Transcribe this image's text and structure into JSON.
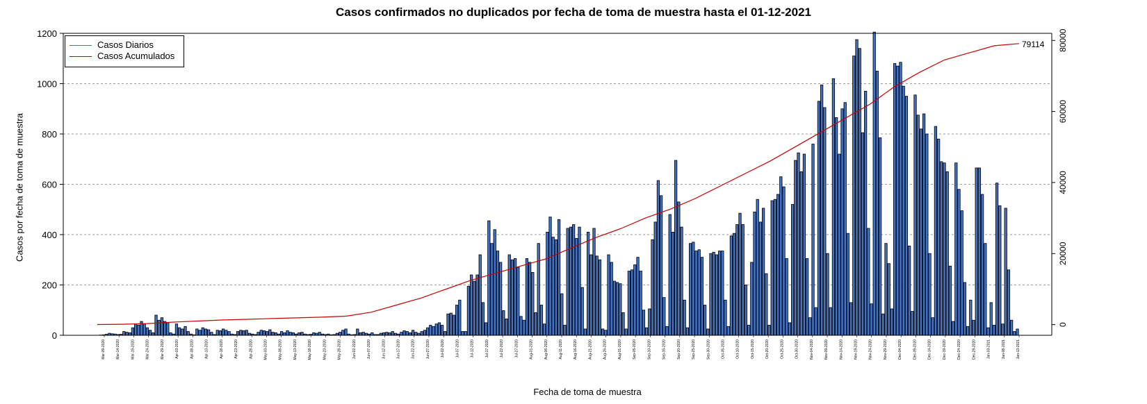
{
  "chart_data": {
    "type": "bar",
    "title": "Casos confirmados no duplicados por fecha de toma de muestra hasta el 01-12-2021",
    "xlabel": "Fecha de toma de muestra",
    "ylabel": "Casos por fecha de toma de muestra",
    "ylim": [
      0,
      1200
    ],
    "y_ticks": [
      0,
      200,
      400,
      600,
      800,
      1000,
      1200
    ],
    "y2lim": [
      -3000,
      82000
    ],
    "y2_ticks": [
      0,
      20000,
      40000,
      60000,
      80000
    ],
    "grid": "horizontal dashed",
    "legend_position": "top-left",
    "final_cumulative_label": "79114",
    "x_tick_labels": [
      "Mar-09-2020",
      "Mar-14-2020",
      "Mar-19-2020",
      "Mar-24-2020",
      "Mar-29-2020",
      "Apr-03-2020",
      "Apr-08-2020",
      "Apr-13-2020",
      "Apr-18-2020",
      "Apr-23-2020",
      "Apr-28-2020",
      "May-03-2020",
      "May-08-2020",
      "May-13-2020",
      "May-18-2020",
      "May-23-2020",
      "May-28-2020",
      "Jun-02-2020",
      "Jun-07-2020",
      "Jun-12-2020",
      "Jun-17-2020",
      "Jun-22-2020",
      "Jun-27-2020",
      "Jul-02-2020",
      "Jul-07-2020",
      "Jul-12-2020",
      "Jul-17-2020",
      "Jul-22-2020",
      "Jul-27-2020",
      "Aug-01-2020",
      "Aug-06-2020",
      "Aug-11-2020",
      "Aug-16-2020",
      "Aug-21-2020",
      "Aug-26-2020",
      "Aug-31-2020",
      "Sep-05-2020",
      "Sep-10-2020",
      "Sep-15-2020",
      "Sep-20-2020",
      "Sep-25-2020",
      "Sep-30-2020",
      "Oct-05-2020",
      "Oct-10-2020",
      "Oct-15-2020",
      "Oct-20-2020",
      "Oct-25-2020",
      "Oct-30-2020",
      "Nov-04-2020",
      "Nov-09-2020",
      "Nov-14-2020",
      "Nov-19-2020",
      "Nov-24-2020",
      "Nov-29-2020",
      "Dec-04-2020",
      "Dec-09-2020",
      "Dec-14-2020",
      "Dec-19-2020",
      "Dec-24-2020",
      "Dec-29-2020",
      "Jan-03-2021",
      "Jan-08-2021",
      "Jan-13-2021"
    ],
    "series": [
      {
        "name": "Casos Diarios",
        "color": "#4472c4",
        "values": [
          1,
          2,
          4,
          8,
          6,
          5,
          3,
          4,
          15,
          12,
          10,
          30,
          45,
          40,
          55,
          45,
          30,
          20,
          10,
          80,
          60,
          70,
          55,
          50,
          10,
          5,
          45,
          30,
          25,
          35,
          15,
          5,
          2,
          25,
          20,
          30,
          25,
          22,
          12,
          3,
          20,
          18,
          25,
          20,
          15,
          5,
          3,
          15,
          20,
          18,
          20,
          8,
          5,
          3,
          12,
          20,
          18,
          15,
          22,
          12,
          10,
          5,
          15,
          10,
          18,
          12,
          10,
          5,
          10,
          12,
          5,
          3,
          4,
          10,
          8,
          12,
          5,
          3,
          5,
          2,
          3,
          8,
          12,
          20,
          25,
          5,
          2,
          3,
          25,
          10,
          12,
          8,
          5,
          10,
          3,
          3,
          8,
          10,
          12,
          10,
          15,
          8,
          5,
          12,
          18,
          15,
          10,
          20,
          12,
          8,
          15,
          20,
          30,
          40,
          35,
          45,
          50,
          40,
          15,
          85,
          88,
          80,
          120,
          140,
          15,
          15,
          195,
          240,
          215,
          240,
          320,
          130,
          50,
          455,
          365,
          420,
          335,
          290,
          98,
          65,
          320,
          300,
          305,
          270,
          75,
          60,
          305,
          290,
          250,
          90,
          365,
          120,
          45,
          410,
          470,
          390,
          380,
          460,
          165,
          40,
          425,
          430,
          440,
          385,
          430,
          190,
          25,
          410,
          320,
          425,
          315,
          300,
          25,
          20,
          320,
          290,
          215,
          210,
          205,
          90,
          25,
          255,
          260,
          280,
          310,
          255,
          100,
          30,
          105,
          380,
          450,
          615,
          555,
          150,
          35,
          480,
          410,
          695,
          530,
          430,
          140,
          30,
          365,
          370,
          335,
          340,
          310,
          120,
          25,
          325,
          330,
          320,
          335,
          335,
          140,
          35,
          395,
          405,
          440,
          485,
          440,
          200,
          40,
          290,
          490,
          540,
          450,
          505,
          245,
          40,
          535,
          540,
          560,
          630,
          590,
          305,
          50,
          520,
          695,
          725,
          650,
          720,
          305,
          70,
          760,
          110,
          930,
          995,
          905,
          325,
          110,
          1020,
          865,
          720,
          900,
          925,
          405,
          130,
          1110,
          1175,
          1140,
          805,
          970,
          425,
          125,
          1205,
          1050,
          785,
          85,
          365,
          285,
          105,
          1080,
          1070,
          1085,
          990,
          950,
          355,
          95,
          955,
          875,
          820,
          880,
          800,
          325,
          70,
          830,
          780,
          690,
          685,
          650,
          275,
          55,
          685,
          580,
          495,
          210,
          35,
          140,
          60,
          665,
          665,
          560,
          365,
          30,
          130,
          40,
          605,
          515,
          45,
          505,
          260,
          60,
          15,
          25
        ]
      },
      {
        "name": "Casos Acumulados",
        "color": "#cc0000",
        "values": [
          20,
          100,
          300,
          700,
          1000,
          1300,
          1500,
          1700,
          1900,
          2100,
          2400,
          3500,
          5500,
          7500,
          10000,
          12500,
          14500,
          16500,
          18500,
          21500,
          24500,
          27000,
          30000,
          32500,
          35500,
          39000,
          42500,
          46000,
          50000,
          54000,
          58000,
          62000,
          67000,
          71000,
          74500,
          76500,
          78500,
          79114
        ]
      }
    ]
  }
}
